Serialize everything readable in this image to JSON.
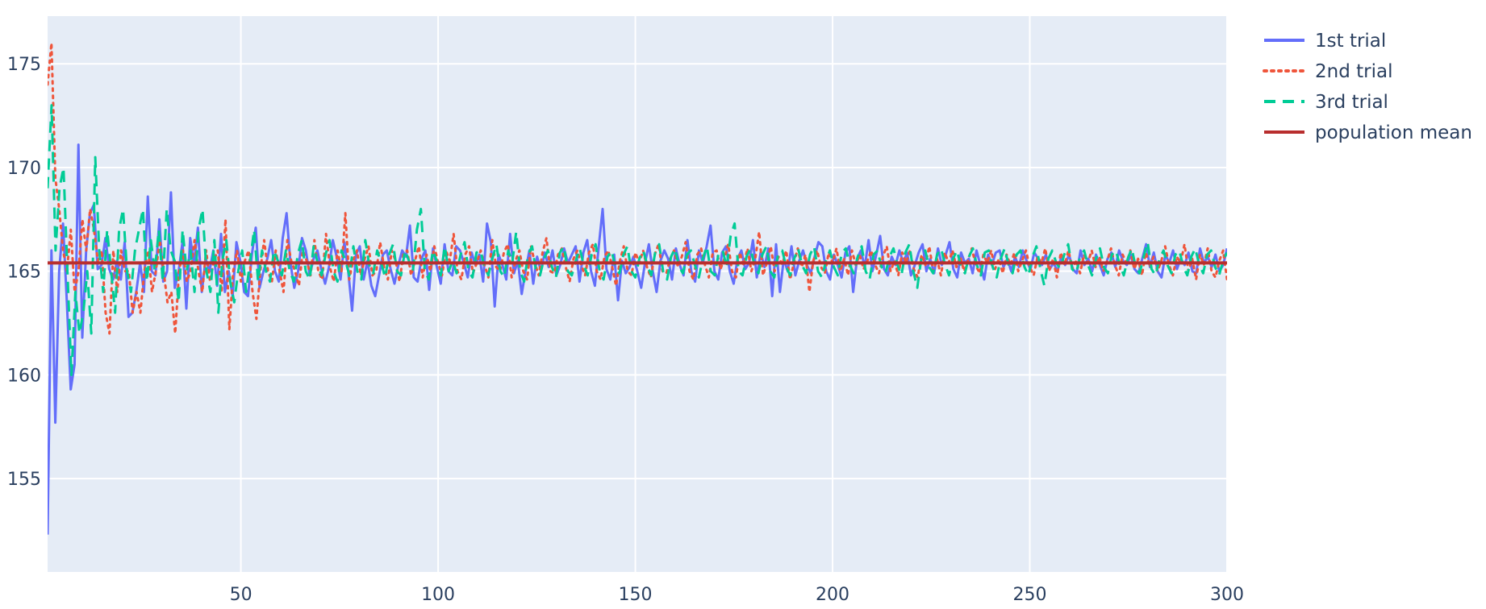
{
  "chart_data": {
    "type": "line",
    "title": "",
    "xlabel": "",
    "ylabel": "",
    "xlim": [
      1,
      300
    ],
    "ylim": [
      150.5,
      177.3
    ],
    "x_ticks": [
      50,
      100,
      150,
      200,
      250,
      300
    ],
    "y_ticks": [
      155,
      160,
      165,
      170,
      175
    ],
    "grid": true,
    "legend_position": "top-right",
    "series": [
      {
        "name": "1st trial",
        "color": "#636efa",
        "dash": "solid",
        "values": [
          152.3,
          166.0,
          157.7,
          165.0,
          167.3,
          163.5,
          159.3,
          160.5,
          171.1,
          161.8,
          166.0,
          167.8,
          168.2,
          165.1,
          165.3,
          166.6,
          165.1,
          164.6,
          165.5,
          164.6,
          166.4,
          162.8,
          163.0,
          164.0,
          165.4,
          164.0,
          168.6,
          165.0,
          164.8,
          167.5,
          164.5,
          165.0,
          168.8,
          164.2,
          165.0,
          166.4,
          163.2,
          166.6,
          165.4,
          167.1,
          164.0,
          165.6,
          165.0,
          166.0,
          164.3,
          166.8,
          164.0,
          165.0,
          163.8,
          166.4,
          165.5,
          164.0,
          163.8,
          165.8,
          167.1,
          164.2,
          165.0,
          165.6,
          166.5,
          165.0,
          164.5,
          166.6,
          167.8,
          165.4,
          164.2,
          165.0,
          166.6,
          166.0,
          164.8,
          165.6,
          166.0,
          165.1,
          164.4,
          165.2,
          166.5,
          165.7,
          164.6,
          166.4,
          165.0,
          163.1,
          165.8,
          166.2,
          164.6,
          165.5,
          164.3,
          163.8,
          164.8,
          165.8,
          166.0,
          165.1,
          164.4,
          165.3,
          166.0,
          165.7,
          167.2,
          164.7,
          164.5,
          165.6,
          166.0,
          164.1,
          166.1,
          165.2,
          164.4,
          166.3,
          165.0,
          164.8,
          166.2,
          166.0,
          165.4,
          164.7,
          165.9,
          165.3,
          165.8,
          164.5,
          167.3,
          166.4,
          163.3,
          165.8,
          165.3,
          164.6,
          166.8,
          164.9,
          165.5,
          163.9,
          165.0,
          166.0,
          164.4,
          165.7,
          165.0,
          165.9,
          165.2,
          166.0,
          164.8,
          165.3,
          166.1,
          165.4,
          165.8,
          166.2,
          164.5,
          165.9,
          166.5,
          165.0,
          164.3,
          166.2,
          168.0,
          165.1,
          164.6,
          165.8,
          163.6,
          165.5,
          164.9,
          165.2,
          165.7,
          165.0,
          164.2,
          165.4,
          166.3,
          165.0,
          164.0,
          165.5,
          166.0,
          165.6,
          164.6,
          166.1,
          165.3,
          164.8,
          166.5,
          165.0,
          164.5,
          166.0,
          165.4,
          166.2,
          167.2,
          165.0,
          164.6,
          165.9,
          166.2,
          165.0,
          164.4,
          165.6,
          166.0,
          165.1,
          165.4,
          166.5,
          164.7,
          165.9,
          165.2,
          166.1,
          163.8,
          166.3,
          164.0,
          165.6,
          165.0,
          166.2,
          164.8,
          165.5,
          166.0,
          165.3,
          164.9,
          165.7,
          166.4,
          166.2,
          165.0,
          164.6,
          165.8,
          165.3,
          164.7,
          165.9,
          166.2,
          164.0,
          165.6,
          166.0,
          165.2,
          166.5,
          165.0,
          165.8,
          166.7,
          165.1,
          164.8,
          165.7,
          165.3,
          166.0,
          165.4,
          165.9,
          164.8,
          165.3,
          165.9,
          166.3,
          165.0,
          165.6,
          164.9,
          166.1,
          165.3,
          165.8,
          166.4,
          165.1,
          164.7,
          165.9,
          165.4,
          165.6,
          164.9,
          166.0,
          165.3,
          164.6,
          165.8,
          165.3,
          165.9,
          166.0,
          165.2,
          165.6,
          165.0,
          165.7,
          165.2,
          166.0,
          165.5,
          165.1,
          165.9,
          165.6,
          165.3,
          165.8,
          165.1,
          165.4,
          165.0,
          165.7,
          165.3,
          165.8,
          165.1,
          164.9,
          166.0,
          165.3,
          165.6,
          165.0,
          165.8,
          165.3,
          164.8,
          165.6,
          165.9,
          165.2,
          166.0,
          165.5,
          165.3,
          165.8,
          165.1,
          164.9,
          165.6,
          166.3,
          165.2,
          165.9,
          165.0,
          164.7,
          165.8,
          165.4,
          166.0,
          165.1,
          165.6,
          165.3,
          165.9,
          165.0,
          164.9,
          166.1,
          165.4,
          165.7,
          165.2,
          165.8,
          165.0,
          165.3,
          166.1
        ]
      },
      {
        "name": "2nd trial",
        "color": "#ef553b",
        "dash": "dot",
        "values": [
          174.0,
          176.0,
          169.5,
          168.0,
          166.0,
          165.0,
          167.0,
          164.0,
          165.0,
          167.5,
          166.0,
          168.0,
          167.0,
          165.5,
          166.0,
          163.0,
          162.0,
          166.0,
          164.0,
          166.0,
          165.0,
          165.0,
          163.0,
          164.0,
          163.0,
          165.0,
          166.0,
          164.0,
          165.0,
          166.5,
          165.0,
          163.5,
          164.0,
          162.0,
          165.0,
          166.0,
          164.5,
          165.0,
          166.5,
          165.0,
          164.0,
          166.0,
          164.5,
          165.5,
          166.0,
          164.0,
          167.5,
          162.2,
          165.0,
          166.0,
          164.5,
          165.5,
          166.0,
          164.0,
          162.7,
          165.0,
          166.5,
          165.0,
          164.5,
          166.0,
          165.0,
          164.0,
          166.5,
          165.5,
          165.0,
          164.3,
          166.0,
          165.5,
          164.8,
          166.5,
          165.0,
          164.6,
          166.8,
          165.2,
          164.5,
          166.0,
          165.0,
          167.8,
          164.6,
          165.5,
          166.0,
          164.8,
          165.6,
          166.2,
          164.8,
          165.0,
          166.4,
          165.2,
          164.6,
          166.0,
          165.5,
          164.5,
          165.8,
          166.0,
          164.8,
          165.5,
          166.2,
          164.7,
          165.8,
          165.0,
          166.2,
          165.4,
          164.8,
          166.0,
          165.5,
          166.8,
          165.0,
          164.6,
          165.8,
          166.2,
          164.9,
          165.4,
          166.0,
          165.3,
          164.7,
          166.5,
          165.2,
          165.0,
          165.9,
          166.3,
          164.7,
          165.5,
          166.0,
          165.0,
          164.6,
          166.2,
          165.4,
          164.8,
          165.9,
          166.6,
          165.0,
          164.9,
          165.8,
          166.1,
          165.2,
          164.5,
          165.6,
          166.0,
          165.3,
          164.8,
          165.9,
          166.3,
          165.0,
          164.6,
          165.7,
          166.0,
          165.2,
          164.3,
          165.5,
          166.2,
          165.0,
          164.8,
          165.9,
          165.4,
          166.0,
          165.2,
          164.7,
          165.8,
          166.3,
          165.0,
          164.9,
          165.6,
          166.0,
          165.2,
          165.7,
          166.4,
          165.0,
          164.6,
          165.8,
          166.1,
          165.3,
          164.7,
          165.9,
          166.0,
          165.1,
          165.6,
          166.3,
          165.0,
          164.7,
          165.9,
          165.3,
          166.1,
          165.0,
          165.6,
          166.9,
          164.8,
          165.4,
          166.2,
          165.0,
          165.7,
          165.3,
          166.0,
          164.6,
          165.4,
          166.1,
          165.2,
          165.8,
          164.0,
          165.5,
          166.0,
          165.2,
          164.9,
          165.9,
          165.4,
          166.1,
          165.0,
          165.6,
          164.8,
          166.0,
          165.3,
          165.8,
          165.1,
          165.5,
          166.0,
          165.3,
          164.9,
          165.7,
          166.2,
          165.0,
          165.5,
          164.8,
          165.9,
          165.4,
          166.0,
          165.1,
          164.7,
          165.8,
          165.3,
          166.2,
          165.0,
          165.6,
          164.8,
          165.9,
          165.4,
          166.0,
          165.2,
          165.7,
          165.0,
          165.5,
          166.1,
          165.3,
          164.9,
          165.8,
          165.4,
          166.0,
          165.1,
          165.6,
          164.9,
          165.8,
          165.3,
          165.9,
          165.0,
          165.5,
          166.0,
          165.2,
          164.8,
          165.7,
          165.4,
          166.1,
          165.0,
          165.6,
          164.7,
          165.9,
          165.3,
          166.0,
          165.1,
          165.5,
          164.9,
          165.8,
          165.4,
          166.0,
          165.2,
          165.7,
          165.0,
          165.5,
          166.1,
          165.3,
          164.8,
          165.8,
          165.4,
          166.0,
          165.1,
          165.6,
          164.8,
          165.9,
          165.2,
          165.7,
          165.0,
          165.5,
          166.2,
          165.3,
          164.8,
          165.7,
          165.4,
          166.3,
          165.0,
          165.6,
          164.6,
          165.8,
          165.3,
          166.1,
          165.0,
          164.7,
          165.5,
          166.0,
          164.6
        ]
      },
      {
        "name": "3rd trial",
        "color": "#00cc96",
        "dash": "dash",
        "values": [
          169.0,
          173.0,
          166.0,
          169.0,
          170.0,
          165.0,
          160.0,
          164.0,
          162.0,
          163.0,
          165.0,
          162.0,
          170.5,
          166.0,
          164.0,
          167.0,
          165.0,
          163.0,
          167.0,
          168.0,
          165.0,
          164.0,
          166.0,
          167.0,
          168.0,
          164.5,
          166.5,
          165.0,
          167.0,
          164.5,
          168.0,
          166.0,
          165.5,
          163.5,
          167.0,
          165.0,
          166.0,
          164.0,
          167.0,
          168.0,
          165.0,
          164.0,
          166.5,
          163.0,
          165.5,
          166.5,
          164.5,
          163.5,
          165.0,
          166.0,
          164.0,
          165.5,
          167.0,
          164.5,
          166.0,
          165.0,
          164.5,
          166.0,
          165.5,
          164.8,
          166.0,
          165.0,
          164.5,
          165.8,
          166.5,
          165.0,
          164.6,
          166.2,
          165.4,
          164.8,
          165.8,
          166.5,
          165.0,
          164.5,
          166.0,
          165.5,
          164.8,
          166.2,
          165.0,
          164.6,
          166.5,
          165.3,
          164.9,
          166.0,
          165.4,
          164.7,
          165.8,
          166.3,
          165.0,
          164.8,
          166.0,
          165.5,
          165.0,
          167.0,
          168.0,
          165.0,
          164.6,
          166.0,
          165.5,
          164.8,
          166.2,
          165.0,
          165.5,
          164.9,
          165.8,
          166.4,
          165.0,
          164.7,
          165.9,
          166.0,
          165.2,
          164.8,
          165.6,
          166.3,
          165.0,
          164.7,
          166.0,
          165.4,
          166.9,
          165.0,
          164.5,
          165.8,
          166.2,
          165.0,
          164.8,
          165.6,
          166.0,
          165.2,
          164.7,
          165.9,
          166.2,
          165.0,
          164.8,
          165.5,
          166.1,
          165.3,
          164.8,
          165.8,
          166.3,
          165.0,
          164.6,
          165.7,
          166.0,
          165.2,
          164.9,
          165.8,
          166.2,
          165.0,
          164.7,
          165.6,
          166.0,
          165.3,
          164.8,
          165.9,
          166.3,
          165.0,
          164.6,
          165.7,
          166.1,
          165.2,
          164.9,
          165.8,
          166.0,
          165.3,
          164.7,
          165.6,
          166.2,
          165.0,
          164.8,
          165.9,
          166.0,
          165.2,
          166.7,
          167.3,
          165.0,
          164.8,
          165.7,
          166.1,
          165.3,
          164.9,
          165.8,
          166.2,
          165.0,
          164.7,
          165.9,
          166.0,
          165.2,
          164.8,
          165.6,
          166.1,
          165.3,
          164.9,
          165.8,
          166.2,
          165.0,
          164.7,
          165.5,
          166.0,
          165.2,
          164.8,
          165.9,
          166.1,
          165.3,
          164.9,
          165.7,
          166.2,
          165.0,
          164.6,
          165.8,
          166.0,
          165.2,
          164.9,
          165.7,
          166.1,
          165.3,
          164.8,
          165.9,
          166.3,
          165.0,
          164.2,
          165.6,
          166.0,
          165.2,
          164.9,
          165.8,
          166.1,
          165.3,
          164.8,
          165.6,
          166.0,
          165.2,
          164.9,
          165.7,
          166.1,
          165.3,
          164.8,
          165.9,
          166.0,
          165.2,
          164.7,
          165.6,
          166.1,
          165.3,
          164.9,
          165.8,
          166.0,
          165.2,
          164.8,
          165.7,
          166.2,
          165.1,
          164.3,
          165.6,
          166.0,
          165.4,
          165.1,
          165.8,
          166.3,
          165.1,
          164.9,
          165.7,
          166.0,
          165.3,
          164.8,
          165.6,
          166.1,
          165.2,
          164.9,
          165.8,
          166.0,
          165.3,
          164.8,
          165.6,
          166.1,
          165.2,
          164.9,
          165.7,
          166.4,
          165.1,
          164.8,
          165.6,
          166.0,
          165.3,
          164.9,
          165.8,
          166.0,
          165.2,
          164.8,
          165.7,
          166.1,
          165.3,
          164.9,
          165.8,
          166.0,
          165.2,
          164.8,
          165.5,
          165.9
        ]
      },
      {
        "name": "population mean",
        "color": "#b82e2e",
        "dash": "solid",
        "constant": 165.4
      }
    ]
  }
}
